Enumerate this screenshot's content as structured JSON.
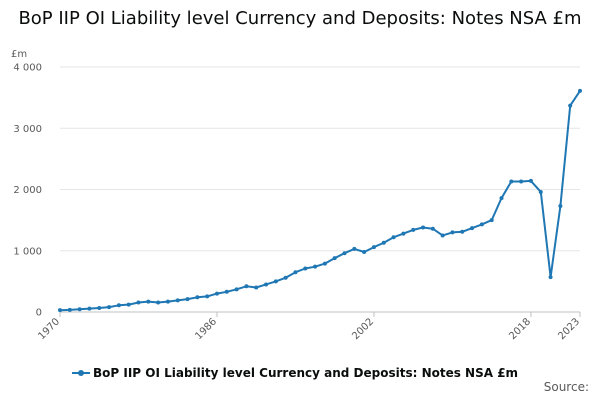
{
  "chart_data": {
    "type": "line",
    "title": "BoP IIP OI Liability level Currency and Deposits: Notes NSA £m",
    "unit_label": "£m",
    "ylim": [
      0,
      4000
    ],
    "yticks": [
      0,
      1000,
      2000,
      3000,
      4000
    ],
    "ytick_labels": [
      "0",
      "1 000",
      "2 000",
      "3 000",
      "4 000"
    ],
    "xlim": [
      1970,
      2023
    ],
    "xticks": [
      1970,
      1986,
      2002,
      2018,
      2023
    ],
    "xtick_labels": [
      "1970",
      "1986",
      "2002",
      "2018",
      "2023"
    ],
    "grid": "horizontal",
    "legend_position": "bottom",
    "series": [
      {
        "name": "BoP IIP OI Liability level Currency and Deposits: Notes NSA £m",
        "color": "#1f77b4",
        "x": [
          1970,
          1971,
          1972,
          1973,
          1974,
          1975,
          1976,
          1977,
          1978,
          1979,
          1980,
          1981,
          1982,
          1983,
          1984,
          1985,
          1986,
          1987,
          1988,
          1989,
          1990,
          1991,
          1992,
          1993,
          1994,
          1995,
          1996,
          1997,
          1998,
          1999,
          2000,
          2001,
          2002,
          2003,
          2004,
          2005,
          2006,
          2007,
          2008,
          2009,
          2010,
          2011,
          2012,
          2013,
          2014,
          2015,
          2016,
          2017,
          2018,
          2019,
          2020,
          2021,
          2022,
          2023
        ],
        "y": [
          30,
          35,
          45,
          55,
          65,
          80,
          110,
          120,
          155,
          170,
          155,
          170,
          190,
          210,
          240,
          255,
          300,
          330,
          370,
          420,
          400,
          450,
          500,
          560,
          650,
          710,
          740,
          790,
          880,
          960,
          1030,
          980,
          1060,
          1130,
          1220,
          1280,
          1340,
          1380,
          1360,
          1250,
          1300,
          1310,
          1370,
          1430,
          1500,
          1860,
          2130,
          2130,
          2140,
          1960,
          570,
          1730,
          3370,
          3610
        ]
      }
    ]
  },
  "source_label": "Source:"
}
